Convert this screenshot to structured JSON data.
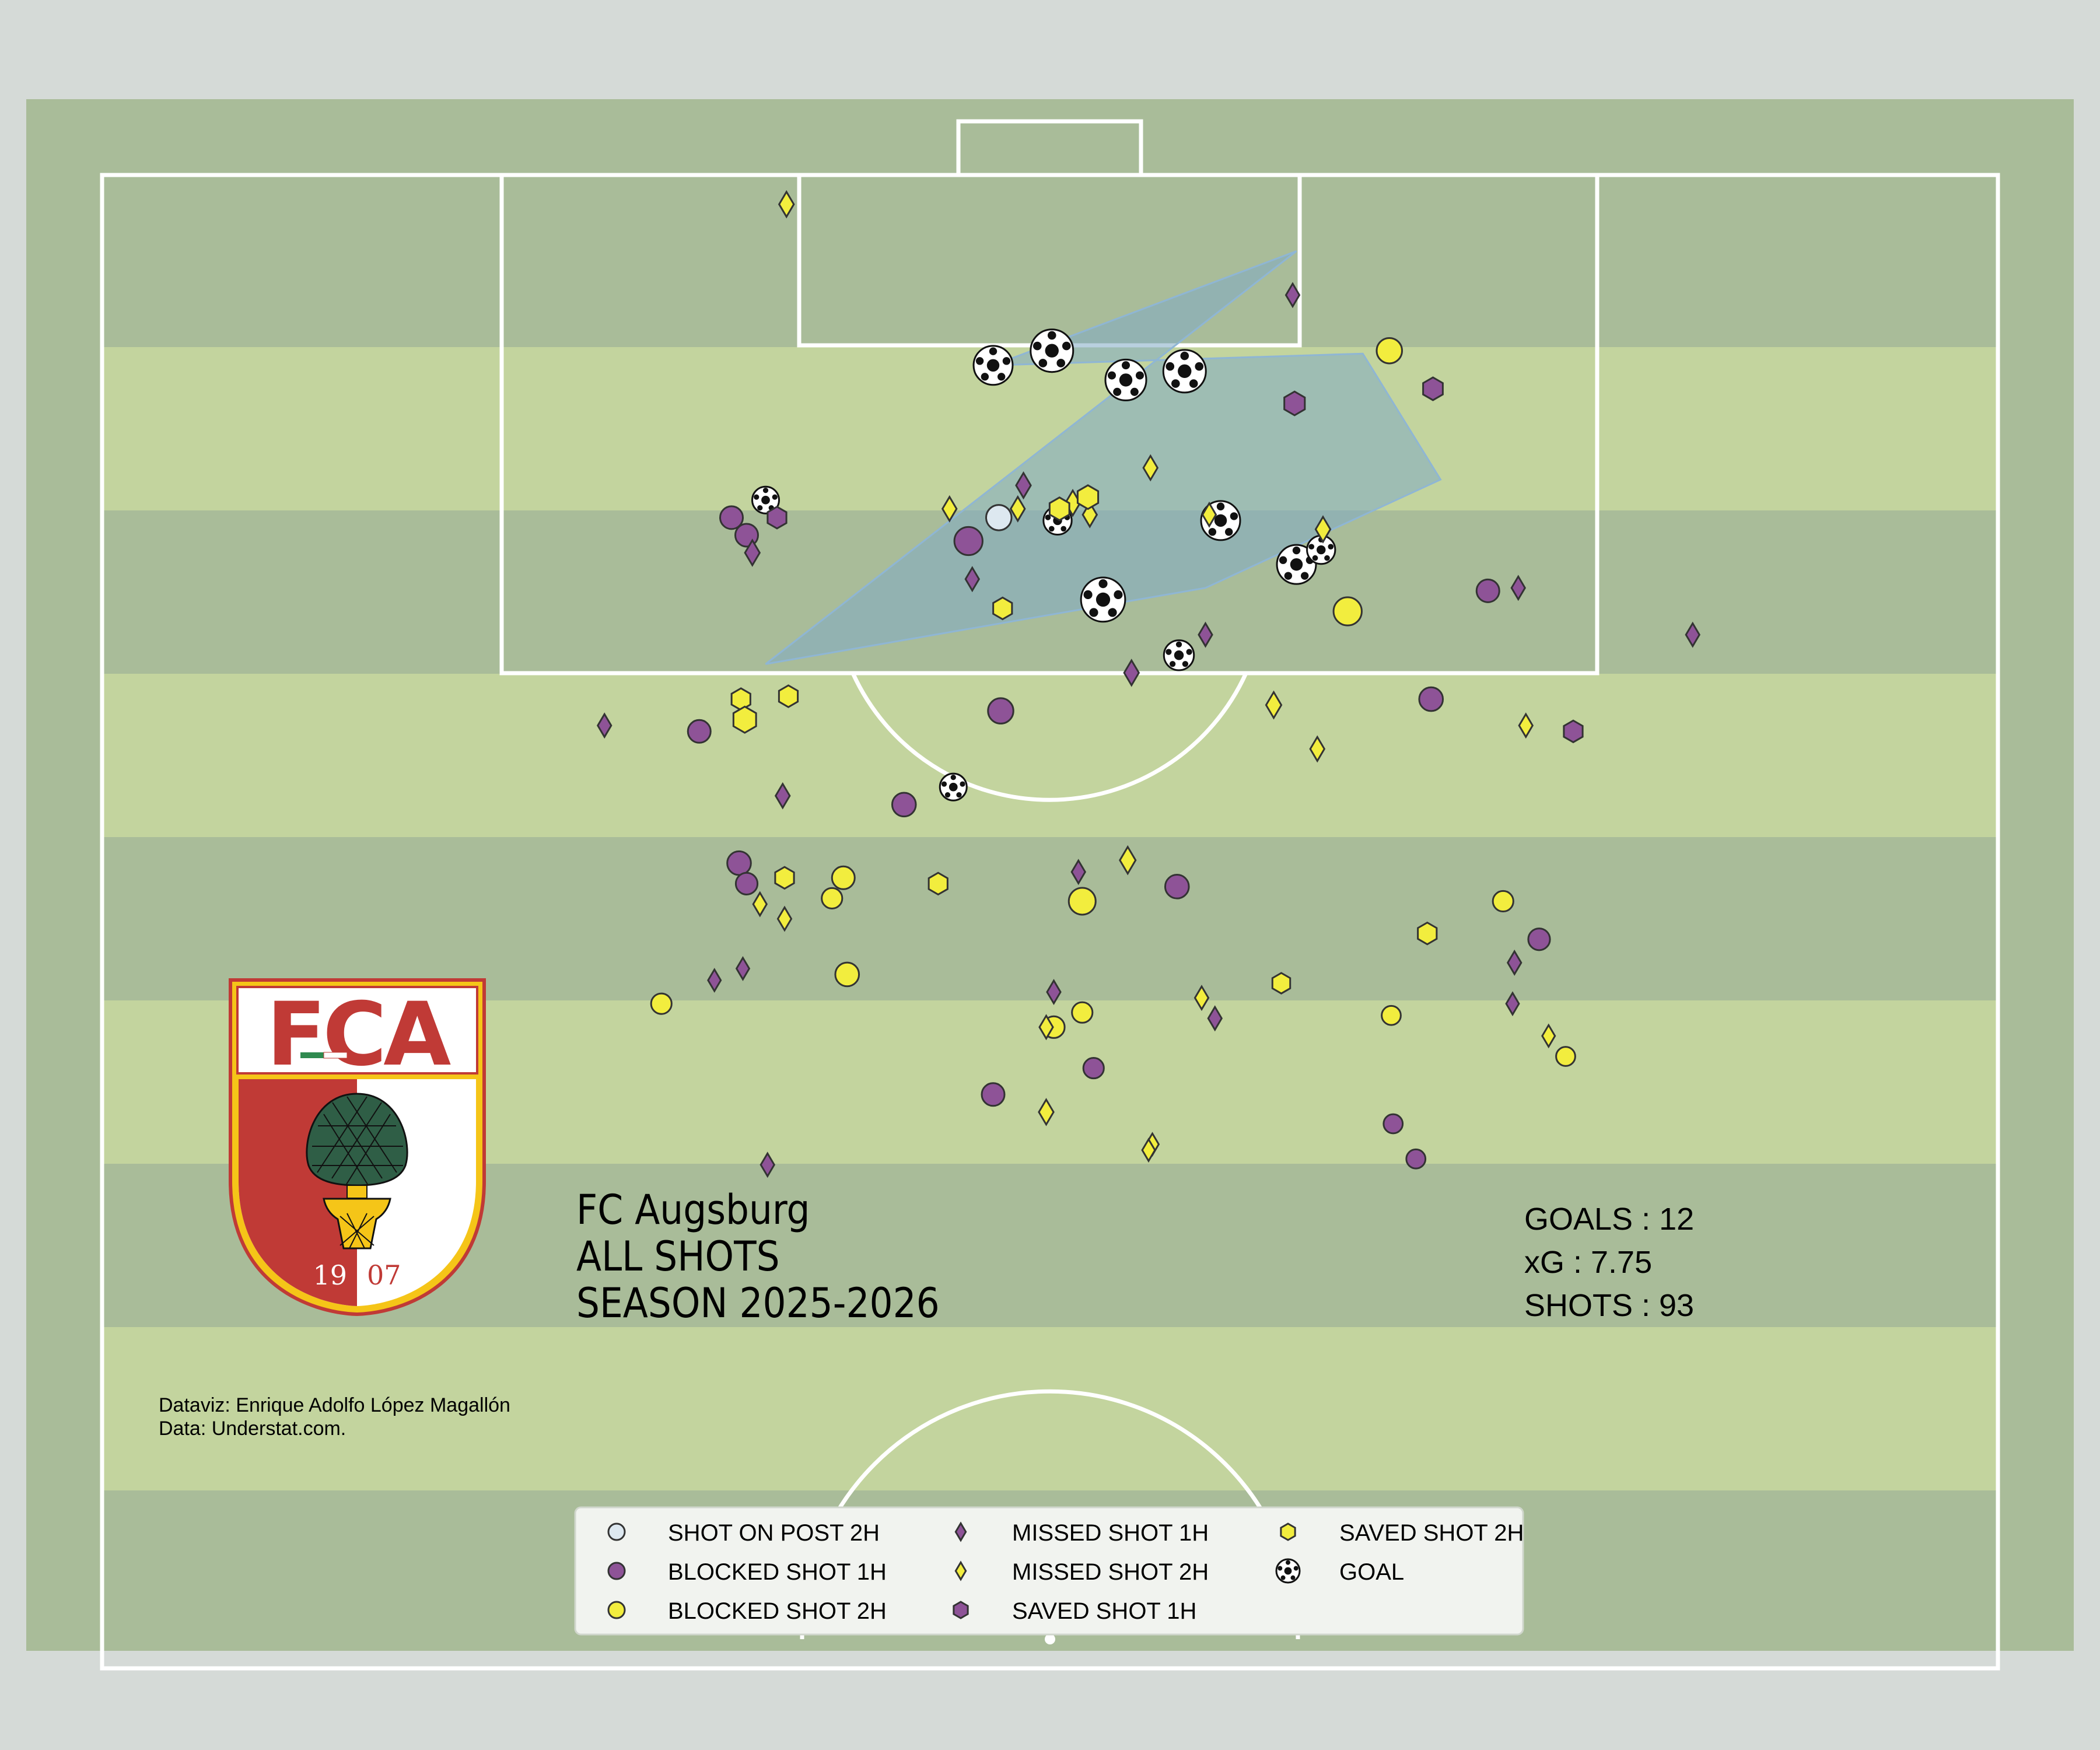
{
  "title_lines": [
    "FC Augsburg",
    "ALL SHOTS",
    "SEASON 2025-2026"
  ],
  "stats": [
    {
      "label": "GOALS",
      "value": "12",
      "text": "GOALS : 12"
    },
    {
      "label": "xG",
      "value": "7.75",
      "text": "xG : 7.75"
    },
    {
      "label": "SHOTS",
      "value": "93",
      "text": "SHOTS : 93"
    }
  ],
  "credits": {
    "dataviz": "Dataviz: Enrique Adolfo López Magallón",
    "data": "Data: Understat.com."
  },
  "crest": {
    "letters": "FCA",
    "year_left": "19",
    "year_right": "07"
  },
  "colors": {
    "page_bg": "#d5dad7",
    "pitch_dark": "#a9bc99",
    "pitch_light": "#c3d49e",
    "lines": "#ffffff",
    "purple": "#8e5397",
    "yellow": "#f2ed3e",
    "post": "#dde8f0",
    "hull_fill": "#7fa9c5",
    "crest_red": "#c03a36",
    "crest_gold": "#f5c518",
    "crest_green": "#2f5e46"
  },
  "chart_data": {
    "type": "scatter",
    "xlim": [
      0,
      100
    ],
    "ylim": [
      50,
      100
    ],
    "hull_points": [
      [
        63,
        97.4
      ],
      [
        47,
        93.5
      ],
      [
        66.5,
        93.9
      ],
      [
        70.6,
        89.6
      ],
      [
        58.2,
        85.9
      ],
      [
        35,
        83.3
      ]
    ],
    "legend": [
      {
        "key": "post2",
        "label": "SHOT ON POST 2H",
        "symbol": "circle",
        "color": "#dde8f0"
      },
      {
        "key": "blocked1",
        "label": "BLOCKED SHOT 1H",
        "symbol": "circle",
        "color": "#8e5397"
      },
      {
        "key": "blocked2",
        "label": "BLOCKED SHOT 2H",
        "symbol": "circle",
        "color": "#f2ed3e"
      },
      {
        "key": "missed1",
        "label": "MISSED SHOT 1H",
        "symbol": "diamond",
        "color": "#8e5397"
      },
      {
        "key": "missed2",
        "label": "MISSED SHOT 2H",
        "symbol": "diamond",
        "color": "#f2ed3e"
      },
      {
        "key": "saved1",
        "label": "SAVED SHOT 1H",
        "symbol": "hexagon",
        "color": "#8e5397"
      },
      {
        "key": "saved2",
        "label": "SAVED SHOT 2H",
        "symbol": "hexagon",
        "color": "#f2ed3e"
      },
      {
        "key": "goal",
        "label": "GOAL",
        "symbol": "ball",
        "color": "#ffffff"
      }
    ],
    "shots": [
      {
        "x": 47.0,
        "y": 93.5,
        "xg": 0.35,
        "result": "goal"
      },
      {
        "x": 50.1,
        "y": 94.0,
        "xg": 0.45,
        "result": "goal"
      },
      {
        "x": 54.0,
        "y": 93.0,
        "xg": 0.4,
        "result": "goal"
      },
      {
        "x": 57.1,
        "y": 93.3,
        "xg": 0.45,
        "result": "goal"
      },
      {
        "x": 35.0,
        "y": 88.9,
        "xg": 0.1,
        "result": "goal"
      },
      {
        "x": 50.4,
        "y": 88.2,
        "xg": 0.12,
        "result": "goal"
      },
      {
        "x": 59.0,
        "y": 88.2,
        "xg": 0.35,
        "result": "goal"
      },
      {
        "x": 63.0,
        "y": 86.7,
        "xg": 0.35,
        "result": "goal"
      },
      {
        "x": 64.3,
        "y": 87.2,
        "xg": 0.12,
        "result": "goal"
      },
      {
        "x": 52.8,
        "y": 85.5,
        "xg": 0.5,
        "result": "goal"
      },
      {
        "x": 56.8,
        "y": 83.6,
        "xg": 0.15,
        "result": "goal"
      },
      {
        "x": 44.9,
        "y": 79.1,
        "xg": 0.1,
        "result": "goal"
      },
      {
        "x": 47.3,
        "y": 88.3,
        "xg": 0.08,
        "result": "post2"
      },
      {
        "x": 33.2,
        "y": 88.3,
        "xg": 0.05,
        "result": "blocked1"
      },
      {
        "x": 34.0,
        "y": 87.7,
        "xg": 0.05,
        "result": "blocked1"
      },
      {
        "x": 45.7,
        "y": 87.5,
        "xg": 0.12,
        "result": "blocked1"
      },
      {
        "x": 73.1,
        "y": 85.8,
        "xg": 0.05,
        "result": "blocked1"
      },
      {
        "x": 70.1,
        "y": 82.1,
        "xg": 0.06,
        "result": "blocked1"
      },
      {
        "x": 31.5,
        "y": 81.0,
        "xg": 0.05,
        "result": "blocked1"
      },
      {
        "x": 47.4,
        "y": 81.7,
        "xg": 0.08,
        "result": "blocked1"
      },
      {
        "x": 42.3,
        "y": 78.5,
        "xg": 0.06,
        "result": "blocked1"
      },
      {
        "x": 33.6,
        "y": 76.5,
        "xg": 0.06,
        "result": "blocked1"
      },
      {
        "x": 34.0,
        "y": 75.8,
        "xg": 0.04,
        "result": "blocked1"
      },
      {
        "x": 56.7,
        "y": 75.7,
        "xg": 0.06,
        "result": "blocked1"
      },
      {
        "x": 75.8,
        "y": 73.9,
        "xg": 0.04,
        "result": "blocked1"
      },
      {
        "x": 52.3,
        "y": 69.5,
        "xg": 0.03,
        "result": "blocked1"
      },
      {
        "x": 47.0,
        "y": 68.6,
        "xg": 0.05,
        "result": "blocked1"
      },
      {
        "x": 68.1,
        "y": 67.6,
        "xg": 0.02,
        "result": "blocked1"
      },
      {
        "x": 69.3,
        "y": 66.4,
        "xg": 0.02,
        "result": "blocked1"
      },
      {
        "x": 67.9,
        "y": 94.0,
        "xg": 0.08,
        "result": "blocked2"
      },
      {
        "x": 65.7,
        "y": 85.1,
        "xg": 0.12,
        "result": "blocked2"
      },
      {
        "x": 39.1,
        "y": 76.0,
        "xg": 0.05,
        "result": "blocked2"
      },
      {
        "x": 38.5,
        "y": 75.3,
        "xg": 0.03,
        "result": "blocked2"
      },
      {
        "x": 51.7,
        "y": 75.2,
        "xg": 0.1,
        "result": "blocked2"
      },
      {
        "x": 73.9,
        "y": 75.2,
        "xg": 0.03,
        "result": "blocked2"
      },
      {
        "x": 39.3,
        "y": 72.7,
        "xg": 0.06,
        "result": "blocked2"
      },
      {
        "x": 29.5,
        "y": 71.7,
        "xg": 0.03,
        "result": "blocked2"
      },
      {
        "x": 51.7,
        "y": 71.4,
        "xg": 0.03,
        "result": "blocked2"
      },
      {
        "x": 68.0,
        "y": 71.3,
        "xg": 0.02,
        "result": "blocked2"
      },
      {
        "x": 50.2,
        "y": 70.9,
        "xg": 0.04,
        "result": "blocked2"
      },
      {
        "x": 77.2,
        "y": 69.9,
        "xg": 0.02,
        "result": "blocked2"
      },
      {
        "x": 62.8,
        "y": 95.9,
        "xg": 0.04,
        "result": "missed1"
      },
      {
        "x": 48.6,
        "y": 89.4,
        "xg": 0.06,
        "result": "missed1"
      },
      {
        "x": 34.3,
        "y": 87.1,
        "xg": 0.06,
        "result": "missed1"
      },
      {
        "x": 45.9,
        "y": 86.2,
        "xg": 0.04,
        "result": "missed1"
      },
      {
        "x": 74.7,
        "y": 85.9,
        "xg": 0.04,
        "result": "missed1"
      },
      {
        "x": 58.2,
        "y": 84.3,
        "xg": 0.04,
        "result": "missed1"
      },
      {
        "x": 83.9,
        "y": 84.3,
        "xg": 0.04,
        "result": "missed1"
      },
      {
        "x": 54.3,
        "y": 83.0,
        "xg": 0.06,
        "result": "missed1"
      },
      {
        "x": 26.5,
        "y": 81.2,
        "xg": 0.04,
        "result": "missed1"
      },
      {
        "x": 35.9,
        "y": 78.8,
        "xg": 0.05,
        "result": "missed1"
      },
      {
        "x": 51.5,
        "y": 76.2,
        "xg": 0.04,
        "result": "missed1"
      },
      {
        "x": 74.5,
        "y": 73.1,
        "xg": 0.04,
        "result": "missed1"
      },
      {
        "x": 33.8,
        "y": 72.9,
        "xg": 0.03,
        "result": "missed1"
      },
      {
        "x": 32.3,
        "y": 72.5,
        "xg": 0.03,
        "result": "missed1"
      },
      {
        "x": 50.2,
        "y": 72.1,
        "xg": 0.04,
        "result": "missed1"
      },
      {
        "x": 74.4,
        "y": 71.7,
        "xg": 0.03,
        "result": "missed1"
      },
      {
        "x": 58.7,
        "y": 71.2,
        "xg": 0.04,
        "result": "missed1"
      },
      {
        "x": 35.1,
        "y": 66.2,
        "xg": 0.04,
        "result": "missed1"
      },
      {
        "x": 36.1,
        "y": 99.0,
        "xg": 0.06,
        "result": "missed2"
      },
      {
        "x": 55.3,
        "y": 90.0,
        "xg": 0.05,
        "result": "missed2"
      },
      {
        "x": 44.7,
        "y": 88.6,
        "xg": 0.05,
        "result": "missed2"
      },
      {
        "x": 48.3,
        "y": 88.6,
        "xg": 0.05,
        "result": "missed2"
      },
      {
        "x": 51.2,
        "y": 88.8,
        "xg": 0.06,
        "result": "missed2"
      },
      {
        "x": 52.1,
        "y": 88.4,
        "xg": 0.05,
        "result": "missed2"
      },
      {
        "x": 58.4,
        "y": 88.4,
        "xg": 0.04,
        "result": "missed2"
      },
      {
        "x": 64.4,
        "y": 87.9,
        "xg": 0.06,
        "result": "missed2"
      },
      {
        "x": 61.8,
        "y": 81.9,
        "xg": 0.07,
        "result": "missed2"
      },
      {
        "x": 75.1,
        "y": 81.2,
        "xg": 0.04,
        "result": "missed2"
      },
      {
        "x": 64.1,
        "y": 80.4,
        "xg": 0.05,
        "result": "missed2"
      },
      {
        "x": 54.1,
        "y": 76.6,
        "xg": 0.08,
        "result": "missed2"
      },
      {
        "x": 34.7,
        "y": 75.1,
        "xg": 0.04,
        "result": "missed2"
      },
      {
        "x": 36.0,
        "y": 74.6,
        "xg": 0.04,
        "result": "missed2"
      },
      {
        "x": 58.0,
        "y": 71.9,
        "xg": 0.04,
        "result": "missed2"
      },
      {
        "x": 49.8,
        "y": 70.9,
        "xg": 0.04,
        "result": "missed2"
      },
      {
        "x": 76.3,
        "y": 70.6,
        "xg": 0.03,
        "result": "missed2"
      },
      {
        "x": 49.8,
        "y": 68.0,
        "xg": 0.06,
        "result": "missed2"
      },
      {
        "x": 55.4,
        "y": 66.9,
        "xg": 0.03,
        "result": "missed2"
      },
      {
        "x": 55.2,
        "y": 66.7,
        "xg": 0.03,
        "result": "missed2"
      },
      {
        "x": 62.9,
        "y": 92.2,
        "xg": 0.06,
        "result": "saved1"
      },
      {
        "x": 35.6,
        "y": 88.3,
        "xg": 0.04,
        "result": "saved1"
      },
      {
        "x": 70.2,
        "y": 92.7,
        "xg": 0.05,
        "result": "saved1"
      },
      {
        "x": 77.6,
        "y": 81.0,
        "xg": 0.04,
        "result": "saved1"
      },
      {
        "x": 52.0,
        "y": 89.0,
        "xg": 0.06,
        "result": "saved2"
      },
      {
        "x": 50.5,
        "y": 88.6,
        "xg": 0.05,
        "result": "saved2"
      },
      {
        "x": 47.5,
        "y": 85.2,
        "xg": 0.04,
        "result": "saved2"
      },
      {
        "x": 33.7,
        "y": 82.1,
        "xg": 0.04,
        "result": "saved2"
      },
      {
        "x": 36.2,
        "y": 82.2,
        "xg": 0.04,
        "result": "saved2"
      },
      {
        "x": 33.9,
        "y": 81.4,
        "xg": 0.09,
        "result": "saved2"
      },
      {
        "x": 36.0,
        "y": 76.0,
        "xg": 0.04,
        "result": "saved2"
      },
      {
        "x": 44.1,
        "y": 75.8,
        "xg": 0.04,
        "result": "saved2"
      },
      {
        "x": 69.9,
        "y": 74.1,
        "xg": 0.04,
        "result": "saved2"
      },
      {
        "x": 62.2,
        "y": 72.4,
        "xg": 0.03,
        "result": "saved2"
      }
    ]
  }
}
